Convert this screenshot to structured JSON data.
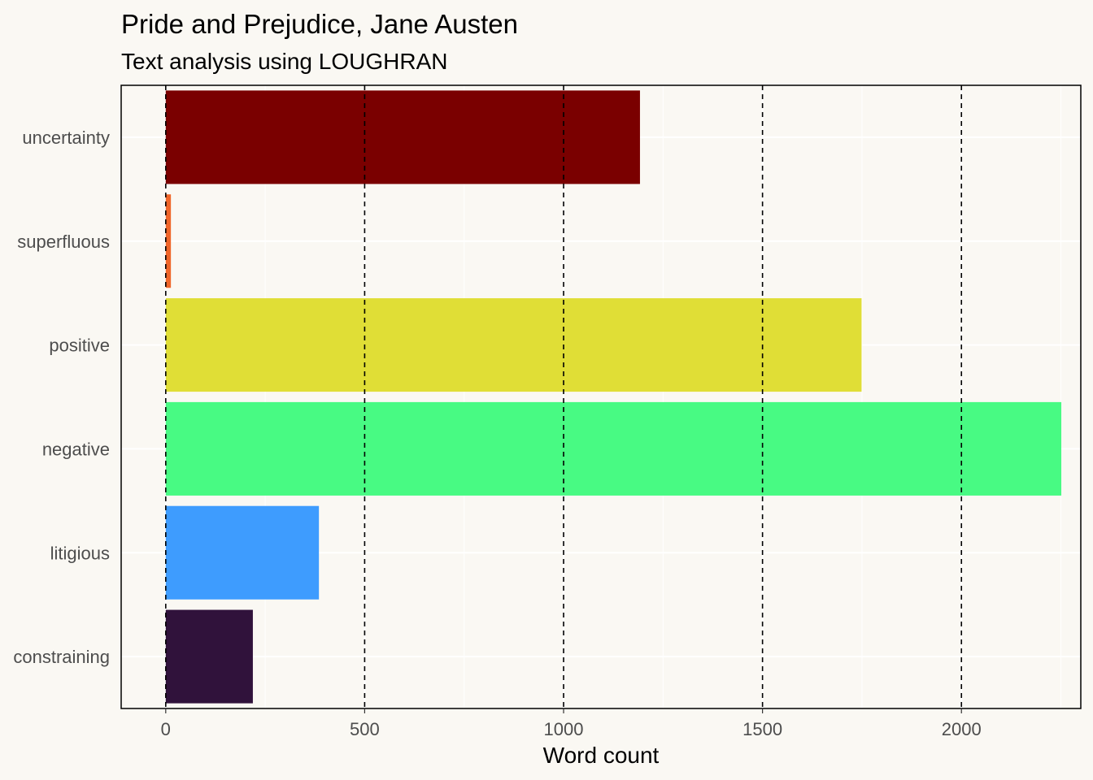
{
  "chart_data": {
    "type": "bar",
    "orientation": "horizontal",
    "title": "Pride and Prejudice, Jane Austen",
    "subtitle": "Text analysis using LOUGHRAN",
    "xlabel": "Word count",
    "ylabel": "",
    "xlim": [
      -112,
      2300
    ],
    "xticks": [
      0,
      500,
      1000,
      1500,
      2000
    ],
    "grid": true,
    "reference_lines": "dashed vertical lines at each major x tick",
    "legend": "none",
    "categories": [
      "uncertainty",
      "superfluous",
      "positive",
      "negative",
      "litigious",
      "constraining"
    ],
    "values": [
      1192,
      13,
      1749,
      2251,
      385,
      219
    ],
    "colors": [
      "#7A0000",
      "#F0662A",
      "#E0DE36",
      "#48FA83",
      "#3E9CFE",
      "#30123B"
    ]
  }
}
